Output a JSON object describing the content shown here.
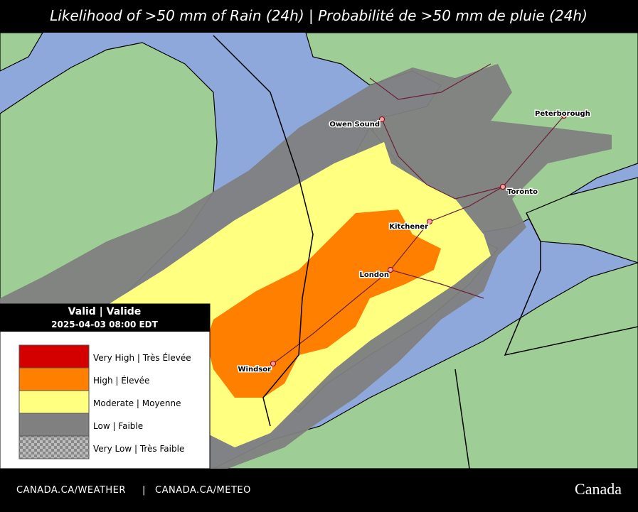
{
  "header": {
    "title": "Likelihood of >50 mm of Rain (24h) | Probabilité de >50 mm de pluie (24h)"
  },
  "legend": {
    "title": "Valid | Valide",
    "date": "2025-04-03 08:00 EDT",
    "items": [
      "Very High | Très Élevée",
      "High | Élevée",
      "Moderate | Moyenne",
      "Low | Faible",
      "Very Low | Très Faible"
    ]
  },
  "cities": [
    "Owen Sound",
    "Peterborough",
    "Toronto",
    "Kitchener",
    "London",
    "Windsor"
  ],
  "footer": {
    "links": [
      "CANADA.CA/WEATHER",
      "CANADA.CA/METEO"
    ],
    "separator": "|",
    "wordmark": "Canada"
  }
}
